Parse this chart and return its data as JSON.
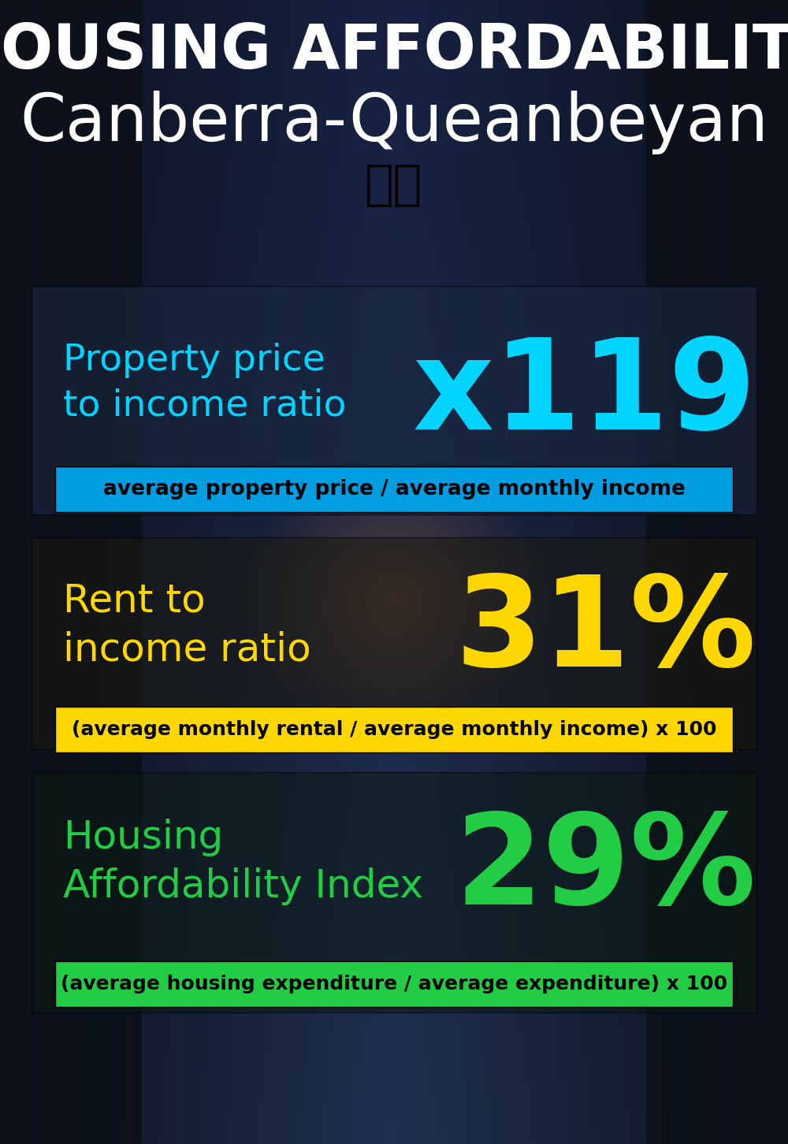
{
  "title_line1": "HOUSING AFFORDABILITY",
  "title_line2": "Canberra-Queanbeyan",
  "flag_emoji": "🇦🇺",
  "section1_label_line1": "Property price",
  "section1_label_line2": "to income ratio",
  "section1_value": "x119",
  "section1_label_color": "#00d4ff",
  "section1_value_color": "#00d4ff",
  "section1_banner": "average property price / average monthly income",
  "section1_banner_bg": "#009de0",
  "section2_label_line1": "Rent to",
  "section2_label_line2": "income ratio",
  "section2_value": "31%",
  "section2_label_color": "#ffd700",
  "section2_value_color": "#ffd700",
  "section2_banner": "(average monthly rental / average monthly income) x 100",
  "section2_banner_bg": "#ffd700",
  "section3_label_line1": "Housing",
  "section3_label_line2": "Affordability Index",
  "section3_value": "29%",
  "section3_label_color": "#22cc44",
  "section3_value_color": "#22cc44",
  "section3_banner": "(average housing expenditure / average expenditure) x 100",
  "section3_banner_bg": "#22cc44",
  "background_color": "#0d1520",
  "title_color": "#ffffff",
  "banner_text_color": "#000000"
}
